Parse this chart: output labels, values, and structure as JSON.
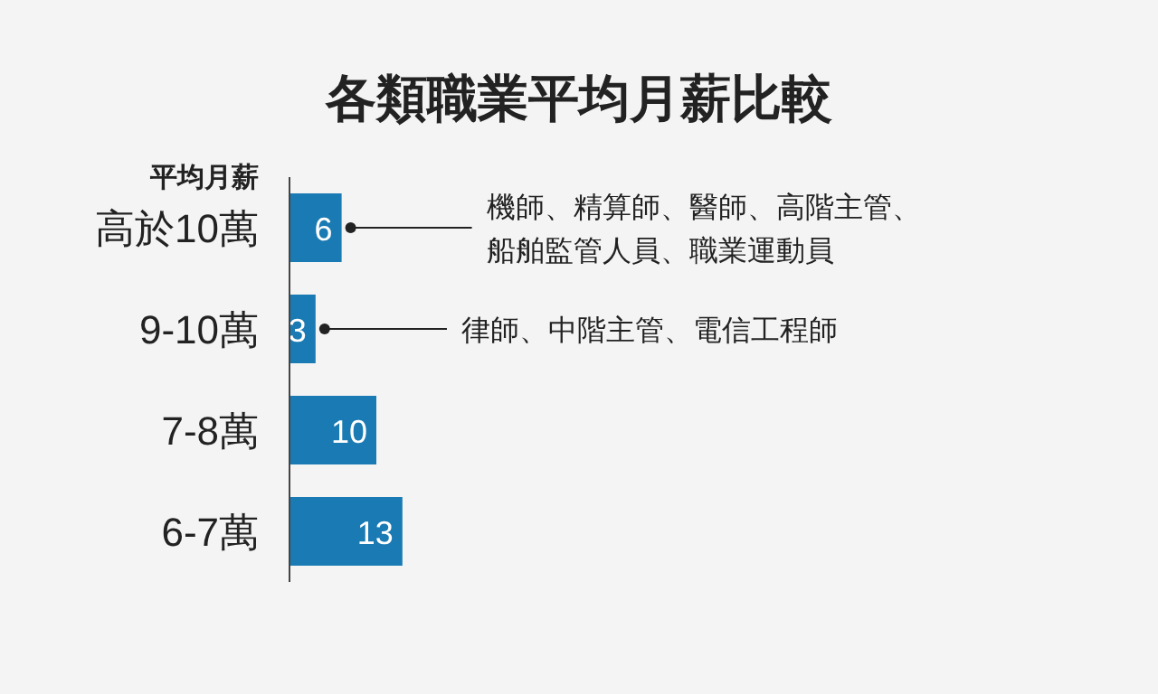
{
  "chart_data": {
    "type": "bar",
    "orientation": "horizontal",
    "title": "各類職業平均月薪比較",
    "ylabel": "平均月薪",
    "categories": [
      "高於10萬",
      "9-10萬",
      "7-8萬",
      "6-7萬"
    ],
    "values": [
      6,
      3,
      10,
      13
    ],
    "color": "#1a7ab3",
    "data_labels": true,
    "annotations": [
      "機師、精算師、醫師、高階主管、船舶監管人員、職業運動員",
      "律師、中階主管、電信工程師"
    ]
  }
}
